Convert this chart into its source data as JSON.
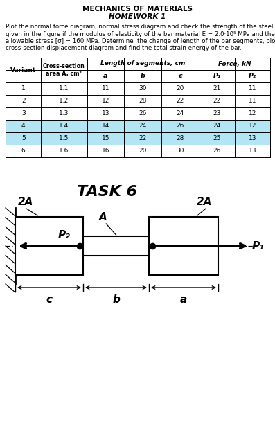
{
  "title1": "MECHANICS OF MATERIALS",
  "title2": "HOMEWORK 1",
  "body_text": "Plot the normal force diagram, normal stress diagram and check the strength of the steel bar\ngiven in the figure if the modulus of elasticity of the bar material E = 2.0·10⁵ MPa and the\nallowable stress [σ] = 160 MPa. Determine  the change of length of the bar segments, plot\ncross-section displacement diagram and find the total strain energy of the bar.",
  "table_data": [
    [
      1,
      1.1,
      11,
      30,
      20,
      21,
      11
    ],
    [
      2,
      1.2,
      12,
      28,
      22,
      22,
      11
    ],
    [
      3,
      1.3,
      13,
      26,
      24,
      23,
      12
    ],
    [
      4,
      1.4,
      14,
      24,
      26,
      24,
      12
    ],
    [
      5,
      1.5,
      15,
      22,
      28,
      25,
      13
    ],
    [
      6,
      1.6,
      16,
      20,
      30,
      26,
      13
    ]
  ],
  "highlight_rows": [
    3,
    4
  ],
  "highlight_color": "#b3e5f5",
  "task_label": "TASK 6",
  "bg_color": "#ffffff"
}
